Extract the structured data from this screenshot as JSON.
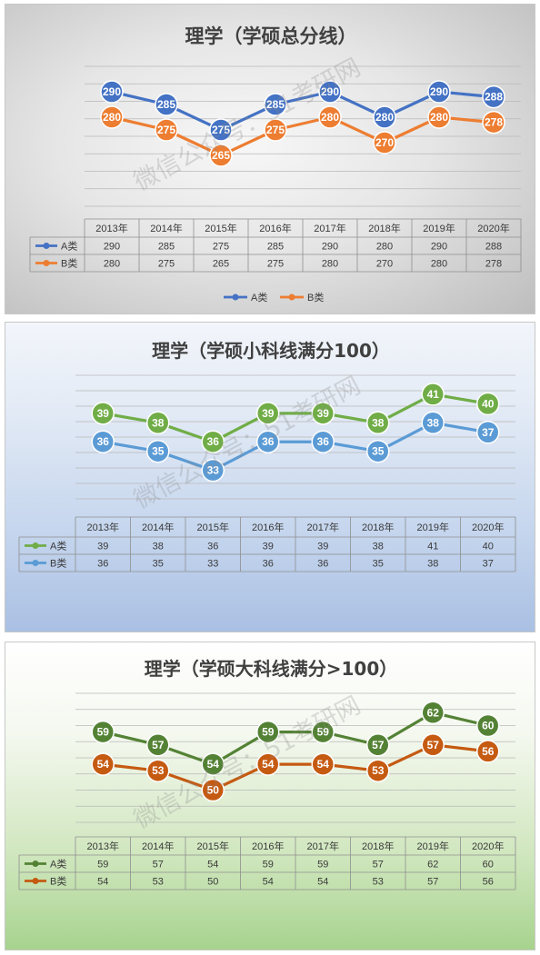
{
  "chart_data": [
    {
      "type": "line",
      "title": "理学（学硕总分线）",
      "categories": [
        "2013年",
        "2014年",
        "2015年",
        "2016年",
        "2017年",
        "2018年",
        "2019年",
        "2020年"
      ],
      "series": [
        {
          "name": "A类",
          "color": "#4472c4",
          "values": [
            290,
            285,
            275,
            285,
            290,
            280,
            290,
            288
          ]
        },
        {
          "name": "B类",
          "color": "#ed7d31",
          "values": [
            280,
            275,
            265,
            275,
            280,
            270,
            280,
            278
          ]
        }
      ],
      "ylim": [
        245,
        300
      ],
      "grid": true,
      "data_table": true,
      "legend": "bottom"
    },
    {
      "type": "line",
      "title": "理学（学硕小科线满分100）",
      "categories": [
        "2013年",
        "2014年",
        "2015年",
        "2016年",
        "2017年",
        "2018年",
        "2019年",
        "2020年"
      ],
      "series": [
        {
          "name": "A类",
          "color": "#70ad47",
          "values": [
            39,
            38,
            36,
            39,
            39,
            38,
            41,
            40
          ]
        },
        {
          "name": "B类",
          "color": "#5b9bd5",
          "values": [
            36,
            35,
            33,
            36,
            36,
            35,
            38,
            37
          ]
        }
      ],
      "ylim": [
        30,
        43
      ],
      "grid": true,
      "data_table": true,
      "legend": "table"
    },
    {
      "type": "line",
      "title": "理学（学硕大科线满分>100）",
      "categories": [
        "2013年",
        "2014年",
        "2015年",
        "2016年",
        "2017年",
        "2018年",
        "2019年",
        "2020年"
      ],
      "series": [
        {
          "name": "A类",
          "color": "#548235",
          "values": [
            59,
            57,
            54,
            59,
            59,
            57,
            62,
            60
          ]
        },
        {
          "name": "B类",
          "color": "#c55a11",
          "values": [
            54,
            53,
            50,
            54,
            54,
            53,
            57,
            56
          ]
        }
      ],
      "ylim": [
        45,
        65
      ],
      "grid": true,
      "data_table": true,
      "legend": "table"
    }
  ],
  "watermark": "微信公众号：51考研网"
}
